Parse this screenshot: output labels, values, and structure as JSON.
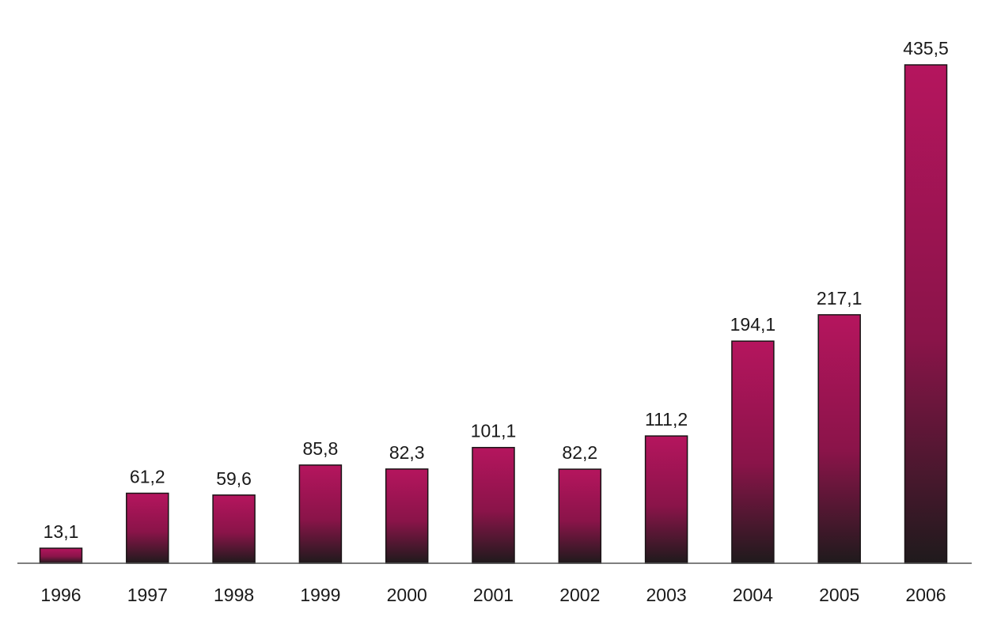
{
  "colors": {
    "bar_top": "#b5155e",
    "bar_bottom": "#1f1a1c",
    "bar_outline": "#1a1416",
    "baseline": "#555555",
    "text": "#1a1a1a",
    "background": "#ffffff"
  },
  "chart_data": {
    "type": "bar",
    "categories": [
      "1996",
      "1997",
      "1998",
      "1999",
      "2000",
      "2001",
      "2002",
      "2003",
      "2004",
      "2005",
      "2006"
    ],
    "values": [
      13.1,
      61.2,
      59.6,
      85.8,
      82.3,
      101.1,
      82.2,
      111.2,
      194.1,
      217.1,
      435.5
    ],
    "value_labels": [
      "13,1",
      "61,2",
      "59,6",
      "85,8",
      "82,3",
      "101,1",
      "82,2",
      "111,2",
      "194,1",
      "217,1",
      "435,5"
    ],
    "title": "",
    "xlabel": "",
    "ylabel": "",
    "ylim": [
      0,
      435.5
    ],
    "grid": false,
    "legend": "none",
    "bar_fill": "vertical gradient, magenta at top to near-black at bottom"
  }
}
